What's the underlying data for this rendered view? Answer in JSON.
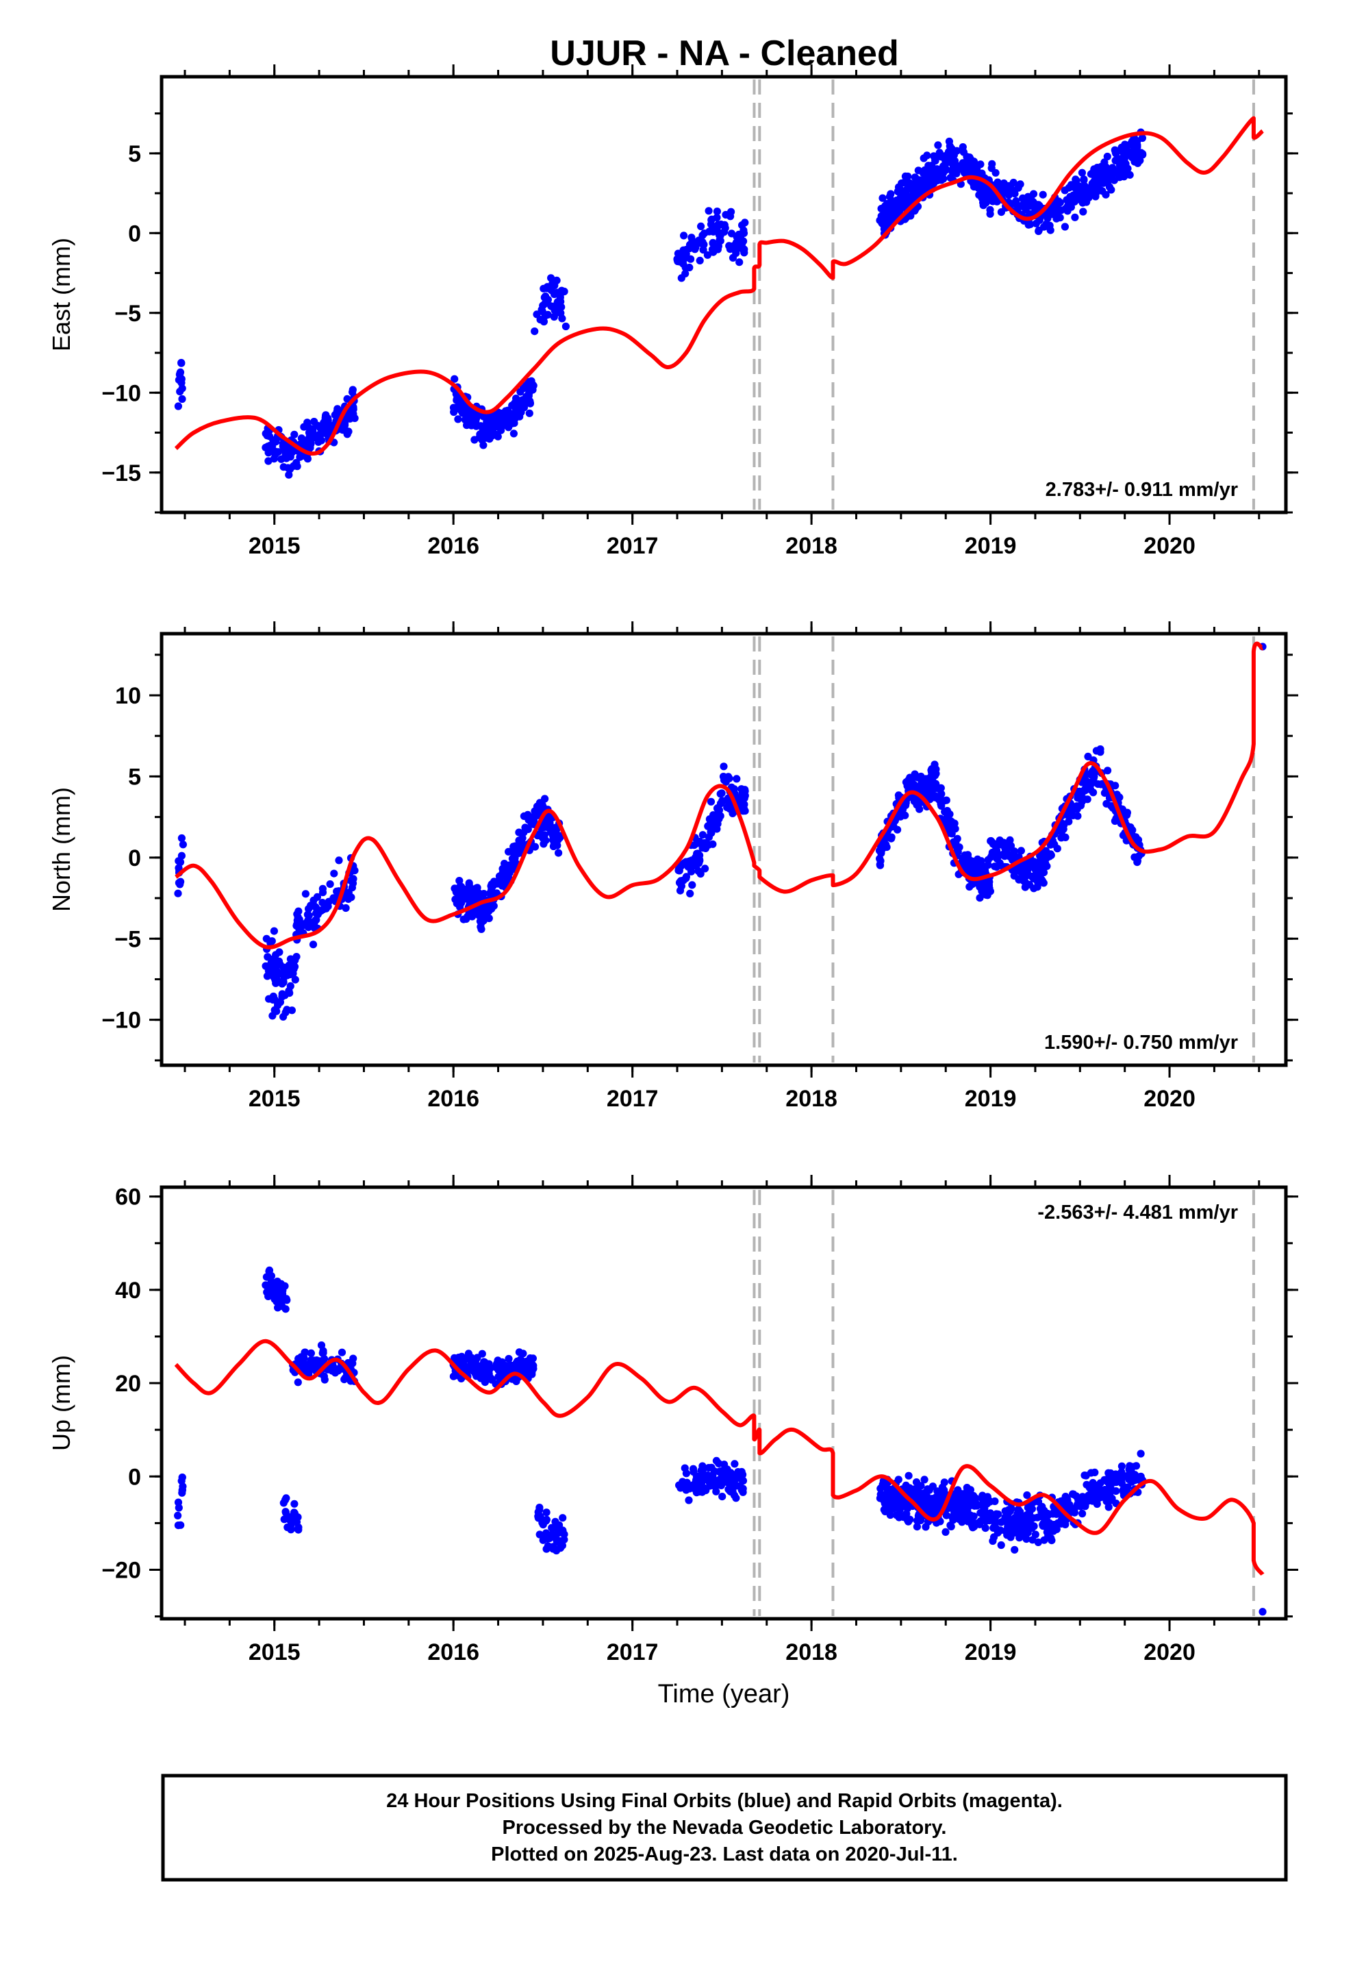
{
  "title": "UJUR  - NA - Cleaned",
  "footer": {
    "lines": [
      "24 Hour Positions Using Final Orbits (blue) and Rapid Orbits (magenta).",
      "Processed by the Nevada Geodetic Laboratory.",
      "Plotted on 2025-Aug-23. Last data on 2020-Jul-11."
    ]
  },
  "colors": {
    "data": "#0000ff",
    "model": "#ff0000",
    "offsets": "#b4b4b4",
    "frame": "#000000"
  },
  "chart_data": [
    {
      "type": "scatter",
      "ylabel": "East (mm)",
      "xlabel": "",
      "xlim": [
        2014.37,
        2020.65
      ],
      "ylim": [
        -17.5,
        9.8
      ],
      "xticks": [
        2015,
        2016,
        2017,
        2018,
        2019,
        2020
      ],
      "yticks": [
        -15,
        -10,
        -5,
        0,
        5
      ],
      "offset_lines": [
        2017.68,
        2017.71,
        2018.12,
        2020.47
      ],
      "rate_label": "2.783+/- 0.911 mm/yr",
      "rate_position": "bottom-right",
      "model": {
        "name": "",
        "x": [
          2014.45,
          2014.55,
          2014.7,
          2014.9,
          2015.05,
          2015.2,
          2015.3,
          2015.4,
          2015.5,
          2015.65,
          2015.85,
          2016.0,
          2016.1,
          2016.2,
          2016.3,
          2016.45,
          2016.6,
          2016.8,
          2016.95,
          2017.1,
          2017.2,
          2017.3,
          2017.4,
          2017.5,
          2017.6,
          2017.68,
          2017.68,
          2017.71,
          2017.71,
          2017.75,
          2017.85,
          2017.95,
          2018.05,
          2018.12,
          2018.12,
          2018.2,
          2018.35,
          2018.5,
          2018.65,
          2018.8,
          2018.9,
          2019.0,
          2019.1,
          2019.2,
          2019.3,
          2019.45,
          2019.6,
          2019.8,
          2019.95,
          2020.1,
          2020.2,
          2020.3,
          2020.47,
          2020.47,
          2020.52
        ],
        "y": [
          -13.5,
          -12.5,
          -11.8,
          -11.6,
          -12.8,
          -13.8,
          -13.2,
          -11.0,
          -9.9,
          -9.0,
          -8.7,
          -9.5,
          -10.8,
          -11.2,
          -10.3,
          -8.5,
          -6.8,
          -6.0,
          -6.3,
          -7.6,
          -8.4,
          -7.5,
          -5.5,
          -4.2,
          -3.7,
          -3.5,
          -2.2,
          -2.0,
          -0.7,
          -0.6,
          -0.5,
          -1.0,
          -2.0,
          -2.8,
          -1.8,
          -1.9,
          -0.8,
          1.0,
          2.5,
          3.2,
          3.5,
          3.0,
          1.6,
          0.9,
          1.5,
          3.8,
          5.3,
          6.2,
          6.0,
          4.4,
          3.8,
          4.8,
          7.2,
          6.0,
          6.4
        ]
      },
      "clusters": [
        {
          "x0": 2014.46,
          "x1": 2014.49,
          "n": 12,
          "f": [
            [
              1,
              -12
            ],
            [
              0,
              -11
            ],
            [
              0.6,
              -9
            ]
          ],
          "spread": 3.0
        },
        {
          "x0": 2014.95,
          "x1": 2015.45,
          "n": 170,
          "f": [
            [
              0,
              -13.0
            ],
            [
              0.3,
              -14.0
            ],
            [
              0.6,
              -12.5
            ],
            [
              1,
              -11.0
            ]
          ],
          "spread": 2.0
        },
        {
          "x0": 2016.0,
          "x1": 2016.45,
          "n": 170,
          "f": [
            [
              0,
              -10.0
            ],
            [
              0.35,
              -12.5
            ],
            [
              0.7,
              -11.5
            ],
            [
              1,
              -9.5
            ]
          ],
          "spread": 2.0
        },
        {
          "x0": 2016.45,
          "x1": 2016.63,
          "n": 45,
          "f": [
            [
              0,
              -6.0
            ],
            [
              0.5,
              -3.5
            ],
            [
              1,
              -5.0
            ]
          ],
          "spread": 2.3
        },
        {
          "x0": 2017.25,
          "x1": 2017.63,
          "n": 100,
          "f": [
            [
              0,
              -2.0
            ],
            [
              0.5,
              0.0
            ],
            [
              1,
              -0.5
            ]
          ],
          "spread": 2.5
        },
        {
          "x0": 2018.38,
          "x1": 2019.0,
          "n": 300,
          "f": [
            [
              0,
              0.5
            ],
            [
              0.3,
              2.5
            ],
            [
              0.6,
              4.5
            ],
            [
              0.8,
              4.5
            ],
            [
              1,
              2.0
            ]
          ],
          "spread": 2.2
        },
        {
          "x0": 2019.0,
          "x1": 2019.85,
          "n": 300,
          "f": [
            [
              0,
              3.0
            ],
            [
              0.35,
              1.0
            ],
            [
              0.6,
              2.5
            ],
            [
              1,
              5.5
            ]
          ],
          "spread": 2.2
        }
      ]
    },
    {
      "type": "scatter",
      "ylabel": "North (mm)",
      "xlabel": "",
      "xlim": [
        2014.37,
        2020.65
      ],
      "ylim": [
        -12.8,
        13.8
      ],
      "xticks": [
        2015,
        2016,
        2017,
        2018,
        2019,
        2020
      ],
      "yticks": [
        -10,
        -5,
        0,
        5,
        10
      ],
      "offset_lines": [
        2017.68,
        2017.71,
        2018.12,
        2020.47
      ],
      "rate_label": "1.590+/- 0.750 mm/yr",
      "rate_position": "bottom-right",
      "model": {
        "name": "",
        "x": [
          2014.45,
          2014.55,
          2014.65,
          2014.8,
          2014.95,
          2015.1,
          2015.25,
          2015.35,
          2015.45,
          2015.55,
          2015.7,
          2015.85,
          2016.0,
          2016.15,
          2016.3,
          2016.45,
          2016.55,
          2016.7,
          2016.85,
          2017.0,
          2017.15,
          2017.3,
          2017.42,
          2017.52,
          2017.6,
          2017.68,
          2017.68,
          2017.71,
          2017.71,
          2017.85,
          2018.0,
          2018.12,
          2018.12,
          2018.25,
          2018.4,
          2018.55,
          2018.7,
          2018.85,
          2019.0,
          2019.15,
          2019.3,
          2019.45,
          2019.55,
          2019.65,
          2019.8,
          2019.95,
          2020.1,
          2020.25,
          2020.4,
          2020.47,
          2020.47,
          2020.52
        ],
        "y": [
          -1.2,
          -0.5,
          -1.5,
          -4.0,
          -5.5,
          -5.0,
          -4.5,
          -3.0,
          0.3,
          1.1,
          -1.5,
          -3.8,
          -3.5,
          -2.8,
          -2.0,
          1.5,
          2.8,
          -0.5,
          -2.4,
          -1.7,
          -1.3,
          0.5,
          3.8,
          4.3,
          2.5,
          -0.3,
          -0.5,
          -0.8,
          -1.2,
          -2.1,
          -1.4,
          -1.1,
          -1.7,
          -1.0,
          1.5,
          4.0,
          2.5,
          -1.0,
          -1.1,
          -0.3,
          0.8,
          3.8,
          5.8,
          4.6,
          0.8,
          0.5,
          1.3,
          1.6,
          4.8,
          7.0,
          12.7,
          12.9
        ]
      },
      "clusters": [
        {
          "x0": 2014.46,
          "x1": 2014.49,
          "n": 12,
          "f": [
            [
              0,
              -1.0
            ],
            [
              1,
              0.5
            ]
          ],
          "spread": 3.0
        },
        {
          "x0": 2014.95,
          "x1": 2015.12,
          "n": 80,
          "f": [
            [
              0,
              -6.5
            ],
            [
              0.5,
              -8.0
            ],
            [
              1,
              -7.5
            ]
          ],
          "spread": 3.5
        },
        {
          "x0": 2015.12,
          "x1": 2015.45,
          "n": 90,
          "f": [
            [
              0,
              -4.5
            ],
            [
              0.5,
              -3.0
            ],
            [
              1,
              -1.0
            ]
          ],
          "spread": 2.5
        },
        {
          "x0": 2016.0,
          "x1": 2016.6,
          "n": 250,
          "f": [
            [
              0,
              -2.5
            ],
            [
              0.3,
              -3.0
            ],
            [
              0.6,
              0.5
            ],
            [
              0.8,
              2.5
            ],
            [
              1,
              1.0
            ]
          ],
          "spread": 2.2
        },
        {
          "x0": 2017.25,
          "x1": 2017.63,
          "n": 120,
          "f": [
            [
              0,
              -1.5
            ],
            [
              0.4,
              0.5
            ],
            [
              0.7,
              4.0
            ],
            [
              1,
              3.5
            ]
          ],
          "spread": 2.3
        },
        {
          "x0": 2018.38,
          "x1": 2019.0,
          "n": 300,
          "f": [
            [
              0,
              0.5
            ],
            [
              0.25,
              4.0
            ],
            [
              0.5,
              4.5
            ],
            [
              0.75,
              -0.5
            ],
            [
              1,
              -1.5
            ]
          ],
          "spread": 2.0
        },
        {
          "x0": 2019.0,
          "x1": 2019.85,
          "n": 300,
          "f": [
            [
              0,
              0.5
            ],
            [
              0.3,
              -1.0
            ],
            [
              0.55,
              3.5
            ],
            [
              0.7,
              5.5
            ],
            [
              1,
              0.0
            ]
          ],
          "spread": 2.0
        }
      ],
      "extra_points": [
        [
          2020.52,
          13.0
        ]
      ]
    },
    {
      "type": "scatter",
      "ylabel": "Up (mm)",
      "xlabel": "Time (year)",
      "xlim": [
        2014.37,
        2020.65
      ],
      "ylim": [
        -30.5,
        62.0
      ],
      "xticks": [
        2015,
        2016,
        2017,
        2018,
        2019,
        2020
      ],
      "yticks": [
        -20,
        0,
        20,
        40,
        60
      ],
      "offset_lines": [
        2017.68,
        2017.71,
        2018.12,
        2020.47
      ],
      "rate_label": "-2.563+/- 4.481 mm/yr",
      "rate_position": "top-right",
      "model": {
        "name": "",
        "x": [
          2014.45,
          2014.55,
          2014.65,
          2014.8,
          2014.95,
          2015.1,
          2015.2,
          2015.35,
          2015.5,
          2015.6,
          2015.75,
          2015.9,
          2016.05,
          2016.2,
          2016.35,
          2016.5,
          2016.6,
          2016.75,
          2016.9,
          2017.05,
          2017.2,
          2017.35,
          2017.5,
          2017.6,
          2017.68,
          2017.68,
          2017.71,
          2017.71,
          2017.8,
          2017.9,
          2018.05,
          2018.12,
          2018.12,
          2018.25,
          2018.4,
          2018.55,
          2018.7,
          2018.85,
          2019.0,
          2019.15,
          2019.3,
          2019.45,
          2019.6,
          2019.75,
          2019.9,
          2020.05,
          2020.2,
          2020.35,
          2020.47,
          2020.47,
          2020.52
        ],
        "y": [
          24,
          20,
          18,
          24,
          29,
          24,
          21,
          25,
          18,
          16,
          23,
          27,
          22,
          18,
          22,
          16,
          13,
          17,
          24,
          21,
          16,
          19,
          14,
          11,
          13,
          8,
          10,
          5,
          8,
          10,
          6,
          5,
          -4,
          -3,
          0,
          -5,
          -9,
          2,
          -2,
          -6,
          -4,
          -9,
          -12,
          -5,
          -1,
          -7,
          -9,
          -5,
          -10,
          -18,
          -21
        ]
      },
      "clusters": [
        {
          "x0": 2014.46,
          "x1": 2014.49,
          "n": 12,
          "f": [
            [
              0,
              -6
            ],
            [
              1,
              -4
            ]
          ],
          "spread": 12
        },
        {
          "x0": 2014.95,
          "x1": 2015.08,
          "n": 45,
          "f": [
            [
              0,
              42
            ],
            [
              0.5,
              40
            ],
            [
              1,
              38
            ]
          ],
          "spread": 7
        },
        {
          "x0": 2015.05,
          "x1": 2015.14,
          "n": 25,
          "f": [
            [
              0,
              -8
            ],
            [
              1,
              -10
            ]
          ],
          "spread": 6
        },
        {
          "x0": 2015.1,
          "x1": 2015.45,
          "n": 110,
          "f": [
            [
              0,
              24
            ],
            [
              0.5,
              24
            ],
            [
              1,
              22
            ]
          ],
          "spread": 6
        },
        {
          "x0": 2016.0,
          "x1": 2016.45,
          "n": 200,
          "f": [
            [
              0,
              24
            ],
            [
              0.5,
              22
            ],
            [
              1,
              24
            ]
          ],
          "spread": 4.5
        },
        {
          "x0": 2016.47,
          "x1": 2016.62,
          "n": 45,
          "f": [
            [
              0,
              -8
            ],
            [
              0.5,
              -14
            ],
            [
              1,
              -12
            ]
          ],
          "spread": 7
        },
        {
          "x0": 2017.25,
          "x1": 2017.62,
          "n": 110,
          "f": [
            [
              0,
              -2
            ],
            [
              0.5,
              0
            ],
            [
              1,
              -1
            ]
          ],
          "spread": 6
        },
        {
          "x0": 2018.38,
          "x1": 2019.0,
          "n": 300,
          "f": [
            [
              0,
              -4
            ],
            [
              0.4,
              -6
            ],
            [
              0.7,
              -6
            ],
            [
              1,
              -8
            ]
          ],
          "spread": 8
        },
        {
          "x0": 2019.0,
          "x1": 2019.85,
          "n": 300,
          "f": [
            [
              0,
              -10
            ],
            [
              0.4,
              -9
            ],
            [
              0.7,
              -3
            ],
            [
              1,
              0
            ]
          ],
          "spread": 8
        }
      ],
      "extra_points": [
        [
          2020.52,
          -29.0
        ]
      ]
    }
  ]
}
